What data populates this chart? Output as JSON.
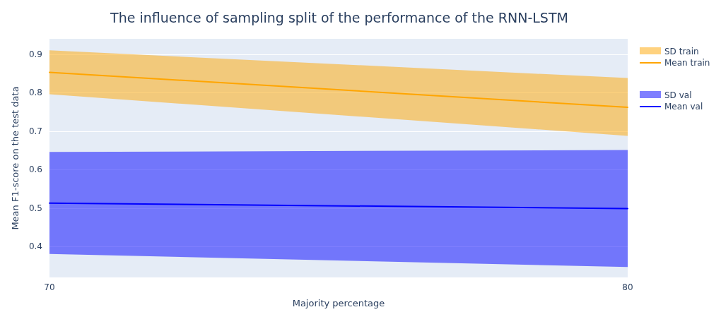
{
  "chart_data": {
    "type": "line",
    "title": "The influence of sampling split of the performance of the RNN-LSTM",
    "xlabel": "Majority percentage",
    "ylabel": "Mean F1-score on the test data",
    "annotations": [
      "SD train",
      "SD val"
    ],
    "x": [
      70,
      80
    ],
    "series": [
      {
        "name": "Mean train",
        "color": "#ffa500",
        "values": [
          0.853,
          0.762
        ],
        "lower": [
          0.796,
          0.688
        ],
        "upper": [
          0.91,
          0.838
        ]
      },
      {
        "name": "Mean val",
        "color": "#0000ff",
        "values": [
          0.513,
          0.499
        ],
        "lower": [
          0.381,
          0.347
        ],
        "upper": [
          0.646,
          0.651
        ]
      }
    ],
    "xlim": [
      70,
      80
    ],
    "xticks": [
      70,
      80
    ],
    "ylim": [
      0.32,
      0.94
    ],
    "yticks": [
      0.4,
      0.5,
      0.6,
      0.7,
      0.8,
      0.9
    ],
    "grid": "y",
    "legend": "top right",
    "line_style": "solid",
    "marker": "none"
  }
}
